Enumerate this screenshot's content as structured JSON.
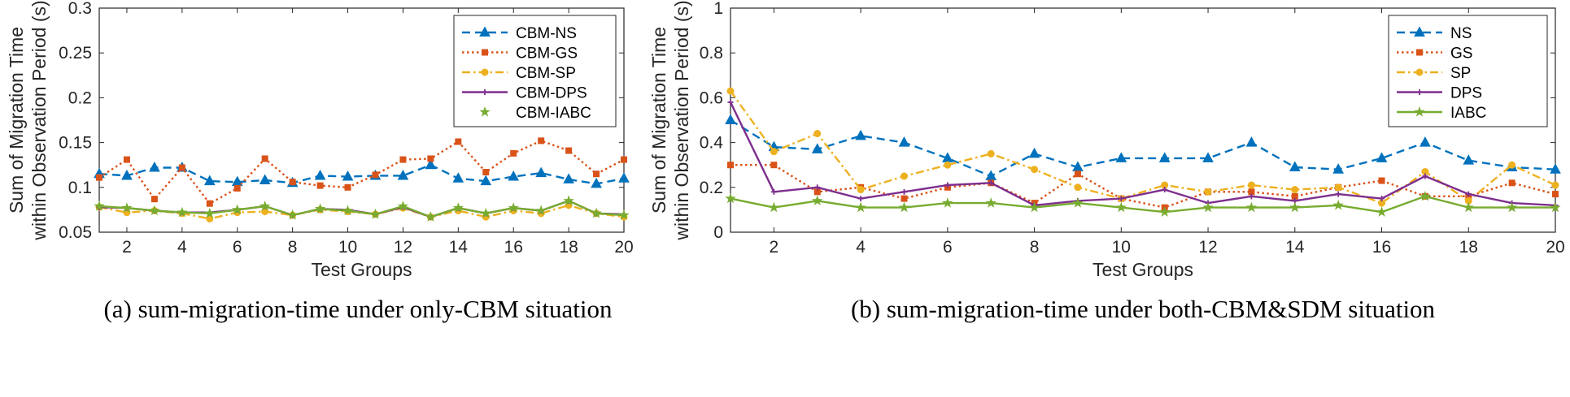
{
  "chart_data": [
    {
      "type": "line",
      "caption": "(a) sum-migration-time under only-CBM situation",
      "xlabel": "Test Groups",
      "ylabel": [
        "Sum of Migration Time",
        "within Observation Period (s)"
      ],
      "xlim": [
        1,
        20
      ],
      "ylim": [
        0.05,
        0.3
      ],
      "xticks": [
        2,
        4,
        6,
        8,
        10,
        12,
        14,
        16,
        18,
        20
      ],
      "yticks": [
        0.05,
        0.1,
        0.15,
        0.2,
        0.25,
        0.3
      ],
      "ytick_labels": [
        "0.05",
        "0.1",
        "0.15",
        "0.2",
        "0.25",
        "0.3"
      ],
      "x": [
        1,
        2,
        3,
        4,
        5,
        6,
        7,
        8,
        9,
        10,
        11,
        12,
        13,
        14,
        15,
        16,
        17,
        18,
        19,
        20
      ],
      "legend_position": "top-right",
      "series": [
        {
          "name": "CBM-NS",
          "color": "#0072BD",
          "dash": "dashed",
          "marker": "triangle",
          "values": [
            0.115,
            0.113,
            0.122,
            0.122,
            0.107,
            0.106,
            0.108,
            0.105,
            0.113,
            0.112,
            0.113,
            0.113,
            0.125,
            0.11,
            0.107,
            0.112,
            0.116,
            0.109,
            0.104,
            0.11
          ]
        },
        {
          "name": "CBM-GS",
          "color": "#D95319",
          "dash": "dotted",
          "marker": "square",
          "values": [
            0.111,
            0.131,
            0.087,
            0.122,
            0.082,
            0.099,
            0.132,
            0.106,
            0.102,
            0.1,
            0.114,
            0.131,
            0.132,
            0.151,
            0.117,
            0.138,
            0.152,
            0.141,
            0.115,
            0.131
          ]
        },
        {
          "name": "CBM-SP",
          "color": "#EDB120",
          "dash": "dashdot",
          "marker": "circle",
          "values": [
            0.078,
            0.072,
            0.074,
            0.071,
            0.065,
            0.072,
            0.073,
            0.069,
            0.075,
            0.073,
            0.07,
            0.077,
            0.067,
            0.074,
            0.067,
            0.074,
            0.071,
            0.08,
            0.071,
            0.067
          ]
        },
        {
          "name": "CBM-DPS",
          "color": "#7E2F8E",
          "dash": "solid",
          "marker": "plus",
          "values": [
            0.078,
            0.077,
            0.074,
            0.072,
            0.072,
            0.075,
            0.079,
            0.069,
            0.076,
            0.075,
            0.07,
            0.078,
            0.067,
            0.077,
            0.071,
            0.077,
            0.074,
            0.085,
            0.071,
            0.07
          ]
        },
        {
          "name": "CBM-IABC",
          "color": "#77AC30",
          "dash": "solid",
          "marker": "star",
          "values": [
            0.079,
            0.077,
            0.074,
            0.072,
            0.071,
            0.075,
            0.079,
            0.069,
            0.076,
            0.074,
            0.07,
            0.079,
            0.067,
            0.077,
            0.071,
            0.077,
            0.074,
            0.085,
            0.071,
            0.069
          ]
        }
      ]
    },
    {
      "type": "line",
      "caption": "(b) sum-migration-time under both-CBM&SDM situation",
      "xlabel": "Test Groups",
      "ylabel": [
        "Sum of Migration Time",
        "within Observation Period (s)"
      ],
      "xlim": [
        1,
        20
      ],
      "ylim": [
        0,
        1
      ],
      "xticks": [
        2,
        4,
        6,
        8,
        10,
        12,
        14,
        16,
        18,
        20
      ],
      "yticks": [
        0,
        0.2,
        0.4,
        0.6,
        0.8,
        1
      ],
      "ytick_labels": [
        "0",
        "0.2",
        "0.4",
        "0.6",
        "0.8",
        "1"
      ],
      "x": [
        1,
        2,
        3,
        4,
        5,
        6,
        7,
        8,
        9,
        10,
        11,
        12,
        13,
        14,
        15,
        16,
        17,
        18,
        19,
        20
      ],
      "legend_position": "top-right",
      "series": [
        {
          "name": "NS",
          "color": "#0072BD",
          "dash": "dashed",
          "marker": "triangle",
          "values": [
            0.5,
            0.38,
            0.37,
            0.43,
            0.4,
            0.33,
            0.25,
            0.35,
            0.29,
            0.33,
            0.33,
            0.33,
            0.4,
            0.29,
            0.28,
            0.33,
            0.4,
            0.32,
            0.29,
            0.28
          ]
        },
        {
          "name": "GS",
          "color": "#D95319",
          "dash": "dotted",
          "marker": "square",
          "values": [
            0.3,
            0.3,
            0.18,
            0.2,
            0.15,
            0.2,
            0.22,
            0.13,
            0.26,
            0.15,
            0.11,
            0.18,
            0.18,
            0.16,
            0.2,
            0.23,
            0.16,
            0.16,
            0.22,
            0.17
          ]
        },
        {
          "name": "SP",
          "color": "#EDB120",
          "dash": "dashdot",
          "marker": "circle",
          "values": [
            0.63,
            0.36,
            0.44,
            0.19,
            0.25,
            0.3,
            0.35,
            0.28,
            0.2,
            0.15,
            0.21,
            0.18,
            0.21,
            0.19,
            0.2,
            0.13,
            0.27,
            0.14,
            0.3,
            0.21
          ]
        },
        {
          "name": "DPS",
          "color": "#7E2F8E",
          "dash": "solid",
          "marker": "plus",
          "values": [
            0.58,
            0.18,
            0.2,
            0.15,
            0.18,
            0.21,
            0.22,
            0.12,
            0.14,
            0.15,
            0.19,
            0.13,
            0.16,
            0.14,
            0.17,
            0.15,
            0.25,
            0.17,
            0.13,
            0.12
          ]
        },
        {
          "name": "IABC",
          "color": "#77AC30",
          "dash": "solid",
          "marker": "star",
          "values": [
            0.15,
            0.11,
            0.14,
            0.11,
            0.11,
            0.13,
            0.13,
            0.11,
            0.13,
            0.11,
            0.09,
            0.11,
            0.11,
            0.11,
            0.12,
            0.09,
            0.16,
            0.11,
            0.11,
            0.11
          ]
        }
      ]
    }
  ]
}
